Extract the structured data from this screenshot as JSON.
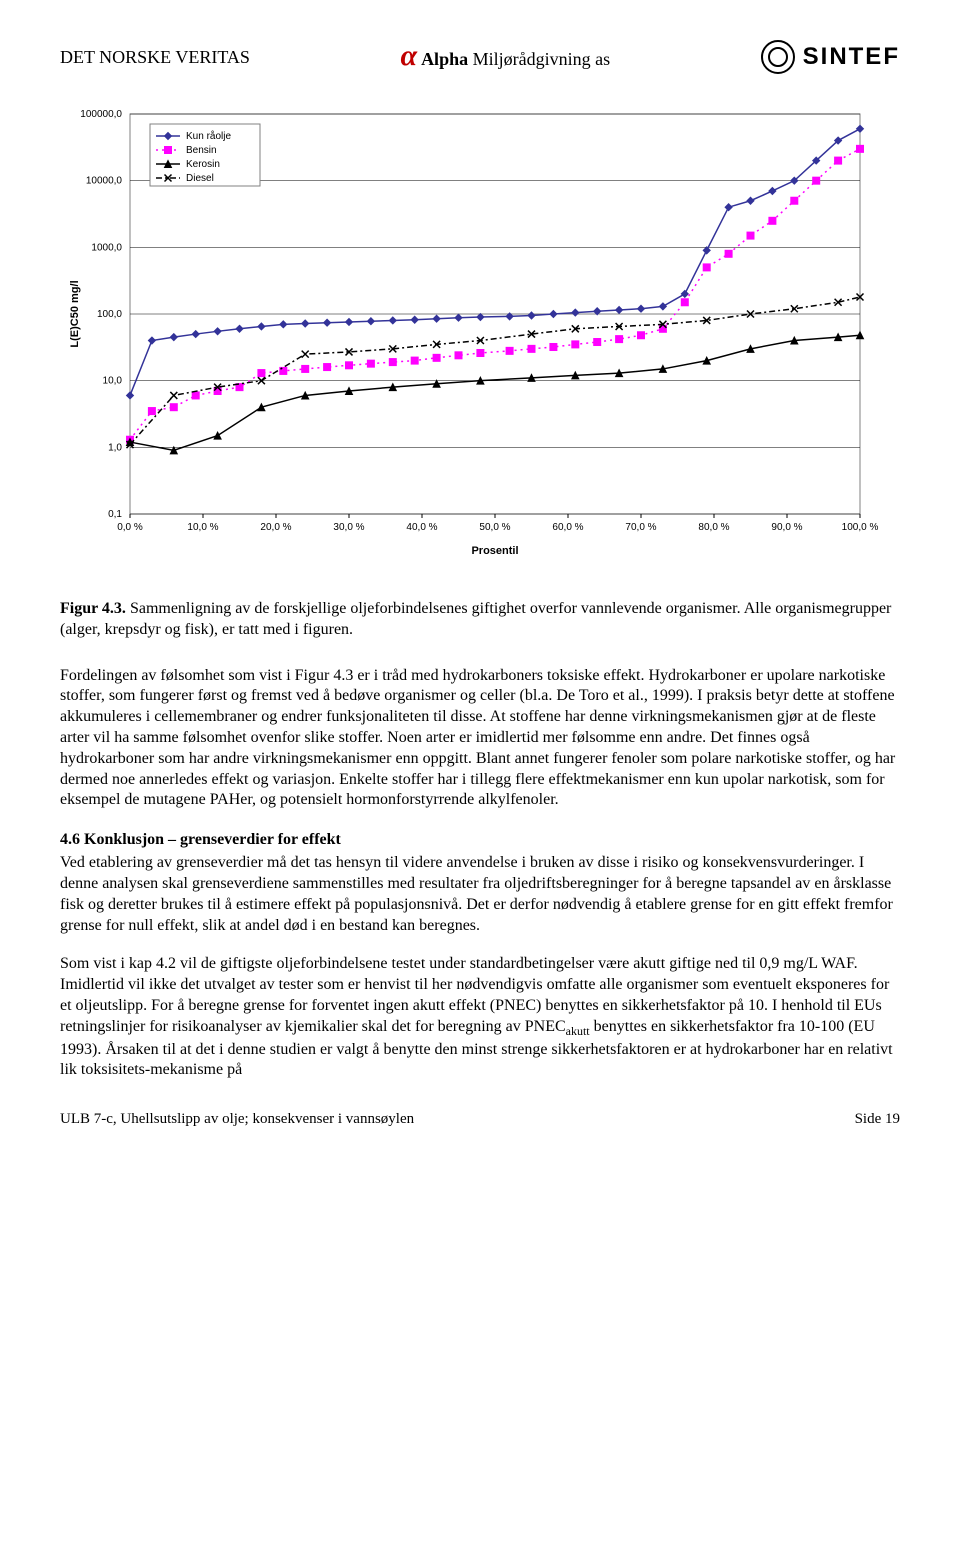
{
  "header": {
    "left": "DET NORSKE VERITAS",
    "alpha_bold": "Alpha",
    "alpha_rest": " Miljørådgivning as",
    "sintef": "SINTEF"
  },
  "chart": {
    "type": "line",
    "ylabel": "L(E)C50 mg/l",
    "xlabel": "Prosentil",
    "yscale": "log",
    "ylim": [
      0.1,
      100000
    ],
    "yticks": [
      "0,1",
      "1,0",
      "10,0",
      "100,0",
      "1000,0",
      "10000,0",
      "100000,0"
    ],
    "xlim": [
      0,
      100
    ],
    "xticks": [
      "0,0 %",
      "10,0 %",
      "20,0 %",
      "30,0 %",
      "40,0 %",
      "50,0 %",
      "60,0 %",
      "70,0 %",
      "80,0 %",
      "90,0 %",
      "100,0 %"
    ],
    "background_color": "#ffffff",
    "grid_color": "#000000",
    "axis_fontsize": 10,
    "label_fontsize": 11,
    "legend": {
      "position": "top-left-inset",
      "items": [
        "Kun råolje",
        "Bensin",
        "Kerosin",
        "Diesel"
      ]
    },
    "series": [
      {
        "name": "Kun råolje",
        "color": "#333399",
        "marker": "diamond",
        "dash": "solid",
        "x": [
          0,
          3,
          6,
          9,
          12,
          15,
          18,
          21,
          24,
          27,
          30,
          33,
          36,
          39,
          42,
          45,
          48,
          52,
          55,
          58,
          61,
          64,
          67,
          70,
          73,
          76,
          79,
          82,
          85,
          88,
          91,
          94,
          97,
          100
        ],
        "y": [
          6,
          40,
          45,
          50,
          55,
          60,
          65,
          70,
          72,
          74,
          76,
          78,
          80,
          82,
          85,
          88,
          90,
          92,
          95,
          100,
          105,
          110,
          115,
          120,
          130,
          200,
          900,
          4000,
          5000,
          7000,
          10000,
          20000,
          40000,
          60000
        ]
      },
      {
        "name": "Bensin",
        "color": "#ff00ff",
        "marker": "square",
        "dash": "dot",
        "x": [
          0,
          3,
          6,
          9,
          12,
          15,
          18,
          21,
          24,
          27,
          30,
          33,
          36,
          39,
          42,
          45,
          48,
          52,
          55,
          58,
          61,
          64,
          67,
          70,
          73,
          76,
          79,
          82,
          85,
          88,
          91,
          94,
          97,
          100
        ],
        "y": [
          1.3,
          3.5,
          4,
          6,
          7,
          8,
          13,
          14,
          15,
          16,
          17,
          18,
          19,
          20,
          22,
          24,
          26,
          28,
          30,
          32,
          35,
          38,
          42,
          48,
          60,
          150,
          500,
          800,
          1500,
          2500,
          5000,
          10000,
          20000,
          30000
        ]
      },
      {
        "name": "Kerosin",
        "color": "#000000",
        "marker": "triangle",
        "dash": "solid",
        "x": [
          0,
          6,
          12,
          18,
          24,
          30,
          36,
          42,
          48,
          55,
          61,
          67,
          73,
          79,
          85,
          91,
          97,
          100
        ],
        "y": [
          1.2,
          0.9,
          1.5,
          4,
          6,
          7,
          8,
          9,
          10,
          11,
          12,
          13,
          15,
          20,
          30,
          40,
          45,
          48
        ]
      },
      {
        "name": "Diesel",
        "color": "#000000",
        "marker": "x",
        "dash": "dashdot",
        "x": [
          0,
          6,
          12,
          18,
          24,
          30,
          36,
          42,
          48,
          55,
          61,
          67,
          73,
          79,
          85,
          91,
          97,
          100
        ],
        "y": [
          1.1,
          6,
          8,
          10,
          25,
          27,
          30,
          35,
          40,
          50,
          60,
          65,
          70,
          80,
          100,
          120,
          150,
          180
        ]
      }
    ]
  },
  "caption": {
    "label": "Figur 4.3.",
    "text": " Sammenligning av de forskjellige oljeforbindelsenes giftighet overfor vannlevende organismer. Alle organismegrupper (alger, krepsdyr og fisk), er tatt med i figuren."
  },
  "para1": "Fordelingen av følsomhet som vist i Figur 4.3 er i tråd med hydrokarboners toksiske effekt. Hydrokarboner er upolare narkotiske stoffer, som fungerer først og fremst ved å bedøve organismer og celler (bl.a. De Toro et al., 1999). I praksis betyr dette at stoffene akkumuleres i cellemembraner og endrer funksjonaliteten til disse. At stoffene har denne virkningsmekanismen gjør at de fleste arter vil ha samme følsomhet ovenfor slike stoffer. Noen arter er imidlertid mer følsomme enn andre. Det finnes også hydrokarboner som har andre virkningsmekanismer enn oppgitt. Blant annet fungerer fenoler som polare narkotiske stoffer, og har dermed noe annerledes effekt og variasjon. Enkelte stoffer har i tillegg flere effektmekanismer enn kun upolar narkotisk, som for eksempel de mutagene PAHer, og potensielt hormonforstyrrende alkylfenoler.",
  "section46": "4.6  Konklusjon – grenseverdier for effekt",
  "para2": "Ved etablering av grenseverdier må det tas hensyn til videre anvendelse i bruken av disse i risiko og konsekvensvurderinger. I denne analysen skal grenseverdiene sammenstilles med resultater fra oljedriftsberegninger for å beregne tapsandel av en årsklasse fisk og deretter brukes til å estimere effekt på populasjonsnivå. Det er derfor nødvendig å etablere grense for en gitt effekt fremfor grense for null effekt, slik at andel død i en bestand kan beregnes.",
  "para3a": "Som vist i kap 4.2 vil de giftigste oljeforbindelsene testet under standardbetingelser være akutt giftige ned til 0,9 mg/L WAF. Imidlertid vil ikke det utvalget av tester som er henvist til her nødvendigvis omfatte alle organismer som eventuelt eksponeres for et oljeutslipp. For å beregne grense for forventet ingen akutt effekt (PNEC) benyttes en sikkerhetsfaktor på 10. I henhold til EUs retningslinjer for risikoanalyser av kjemikalier skal det for beregning av PNEC",
  "para3sub": "akutt",
  "para3b": " benyttes en sikkerhetsfaktor fra 10-100 (EU 1993). Årsaken til at det i denne studien er valgt å benytte den minst strenge sikkerhetsfaktoren er at hydrokarboner har en relativt lik toksisitets-mekanisme på",
  "footer": {
    "left": "ULB 7-c, Uhellsutslipp av olje; konsekvenser i vannsøylen",
    "right": "Side 19"
  }
}
